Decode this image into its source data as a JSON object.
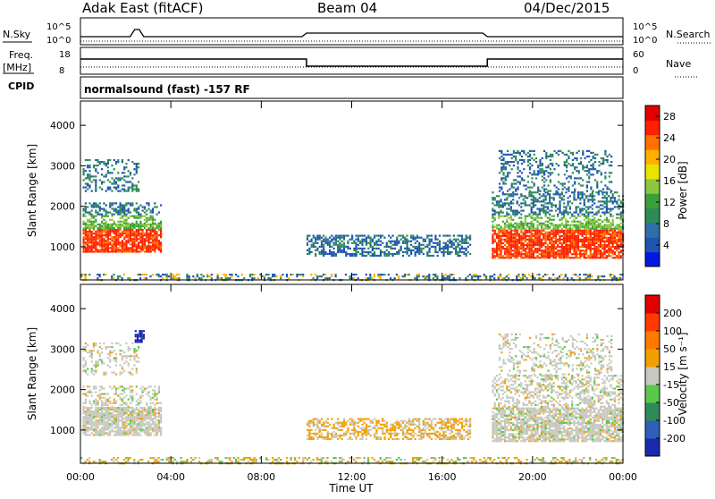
{
  "header": {
    "station": "Adak East (fitACF)",
    "beam": "Beam 04",
    "date": "04/Dec/2015"
  },
  "top_panels": {
    "nsky": {
      "left_label": "N.Sky",
      "left_ticks": [
        "10^5",
        "10^0"
      ],
      "right_ticks": [
        "10^5",
        "10^0"
      ],
      "right_label": "N.Search"
    },
    "freq": {
      "left_label_1": "Freq.",
      "left_label_2": "[MHz]",
      "left_ticks": [
        "18",
        "8"
      ],
      "right_ticks": [
        "60",
        "0"
      ],
      "right_label": "Nave"
    },
    "cpid": {
      "label": "CPID",
      "text": "normalsound (fast) -157 RF"
    }
  },
  "chart_data": [
    {
      "type": "heatmap",
      "name": "power",
      "ylabel": "Slant Range [km]",
      "xlabel": "",
      "x_ticks": [
        "00:00",
        "04:00",
        "08:00",
        "12:00",
        "16:00",
        "20:00",
        "00:00"
      ],
      "xlim_hours": [
        0,
        24
      ],
      "y_ticks": [
        1000,
        2000,
        3000,
        4000
      ],
      "ylim": [
        180,
        4600
      ],
      "colorbar": {
        "label": "Power [dB]",
        "ticks": [
          "4",
          "8",
          "12",
          "16",
          "20",
          "24",
          "28"
        ],
        "colors": [
          "#0018e0",
          "#1f55b0",
          "#2f6fa8",
          "#2e8b57",
          "#3aa13a",
          "#8dc63f",
          "#e6e600",
          "#ffb000",
          "#ff7000",
          "#ff2000",
          "#e00000"
        ]
      }
    },
    {
      "type": "heatmap",
      "name": "velocity",
      "ylabel": "Slant Range [km]",
      "xlabel": "Time UT",
      "x_ticks": [
        "00:00",
        "04:00",
        "08:00",
        "12:00",
        "16:00",
        "20:00",
        "00:00"
      ],
      "xlim_hours": [
        0,
        24
      ],
      "y_ticks": [
        1000,
        2000,
        3000,
        4000
      ],
      "ylim": [
        180,
        4600
      ],
      "colorbar": {
        "label": "Velocity [m s⁻¹]",
        "ticks": [
          "200",
          "100",
          "50",
          "15",
          "-15",
          "-50",
          "-100",
          "-200"
        ],
        "colors": [
          "#1a2ab0",
          "#2f5fb8",
          "#2e8b57",
          "#5ac84a",
          "#c8c8c0",
          "#f2a000",
          "#ff7a00",
          "#ff3a00",
          "#e00000"
        ]
      }
    }
  ]
}
